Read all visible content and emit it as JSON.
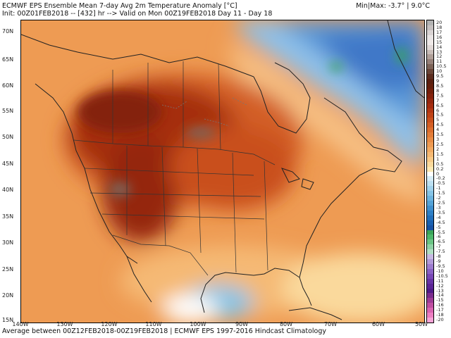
{
  "header": {
    "title_line": "ECMWF EPS Ensemble Mean 7-day Avg 2m Temperature Anomaly [°C]",
    "init_line": "Init: 00Z01FEB2018 -- [432] hr --> Valid on Mon 00Z19FEB2018   Day 11 - Day 18",
    "minmax": "Min|Max: -3.7° | 9.0°C"
  },
  "footer": "Average between 00Z12FEB2018-00Z19FEB2018 | ECMWF EPS 1997-2016 Hindcast Climatology",
  "lat_labels": [
    "70N",
    "65N",
    "60N",
    "55N",
    "50N",
    "45N",
    "40N",
    "35N",
    "30N",
    "25N",
    "20N",
    "15N"
  ],
  "lon_labels": [
    "140W",
    "130W",
    "120W",
    "110W",
    "100W",
    "90W",
    "80W",
    "70W",
    "60W",
    "50W"
  ],
  "colorbar": {
    "labels": [
      "20",
      "18",
      "17",
      "16",
      "15",
      "14",
      "13",
      "12",
      "11",
      "10.5",
      "10",
      "9.5",
      "9",
      "8.5",
      "8",
      "7.5",
      "7",
      "6.5",
      "6",
      "5.5",
      "5",
      "4.5",
      "4",
      "3.5",
      "3",
      "2.5",
      "2",
      "1.5",
      "1",
      "0.5",
      "0.2",
      "0",
      "-0.2",
      "-0.5",
      "-1",
      "-1.5",
      "-2",
      "-2.5",
      "-3",
      "-3.5",
      "-4",
      "-4.5",
      "-5",
      "-5.5",
      "-6",
      "-6.5",
      "-7",
      "-7.5",
      "-8",
      "-9",
      "-9.5",
      "-10",
      "-10.5",
      "-11",
      "-12",
      "-13",
      "-14",
      "-15",
      "-16",
      "-17",
      "-18",
      "-20"
    ],
    "colors": [
      "#b3b3b3",
      "#c5c0c0",
      "#d9d3d3",
      "#e8e4e4",
      "#efe9e8",
      "#e0d8d6",
      "#c9bdb8",
      "#b09f98",
      "#978179",
      "#7d6358",
      "#6a4537",
      "#5c2d1f",
      "#5a2010",
      "#64200c",
      "#741f0b",
      "#84220d",
      "#95270f",
      "#a52d10",
      "#b33713",
      "#bf4317",
      "#c9501d",
      "#d35f25",
      "#dc6e2e",
      "#e37d39",
      "#e98c45",
      "#ee9b53",
      "#f2aa62",
      "#f5b974",
      "#f8c987",
      "#fad99c",
      "#fce8b3",
      "#ffffff",
      "#d6ecf6",
      "#bde0f1",
      "#a1d2ec",
      "#86c4e6",
      "#6cb4df",
      "#55a3d7",
      "#3f90ce",
      "#2e7fc5",
      "#226fbb",
      "#1a60b0",
      "#1752a4",
      "#3aa55a",
      "#4cb86a",
      "#6bc585",
      "#8fd2a6",
      "#b1dfc4",
      "#c7b8e3",
      "#b29ad9",
      "#9d7ccf",
      "#8a61c4",
      "#7848b6",
      "#6834a5",
      "#5b2596",
      "#511b88",
      "#7a2c8e",
      "#9e3c96",
      "#bf4ea2",
      "#d964b1",
      "#ec7fc2",
      "#f6a3d6"
    ]
  }
}
